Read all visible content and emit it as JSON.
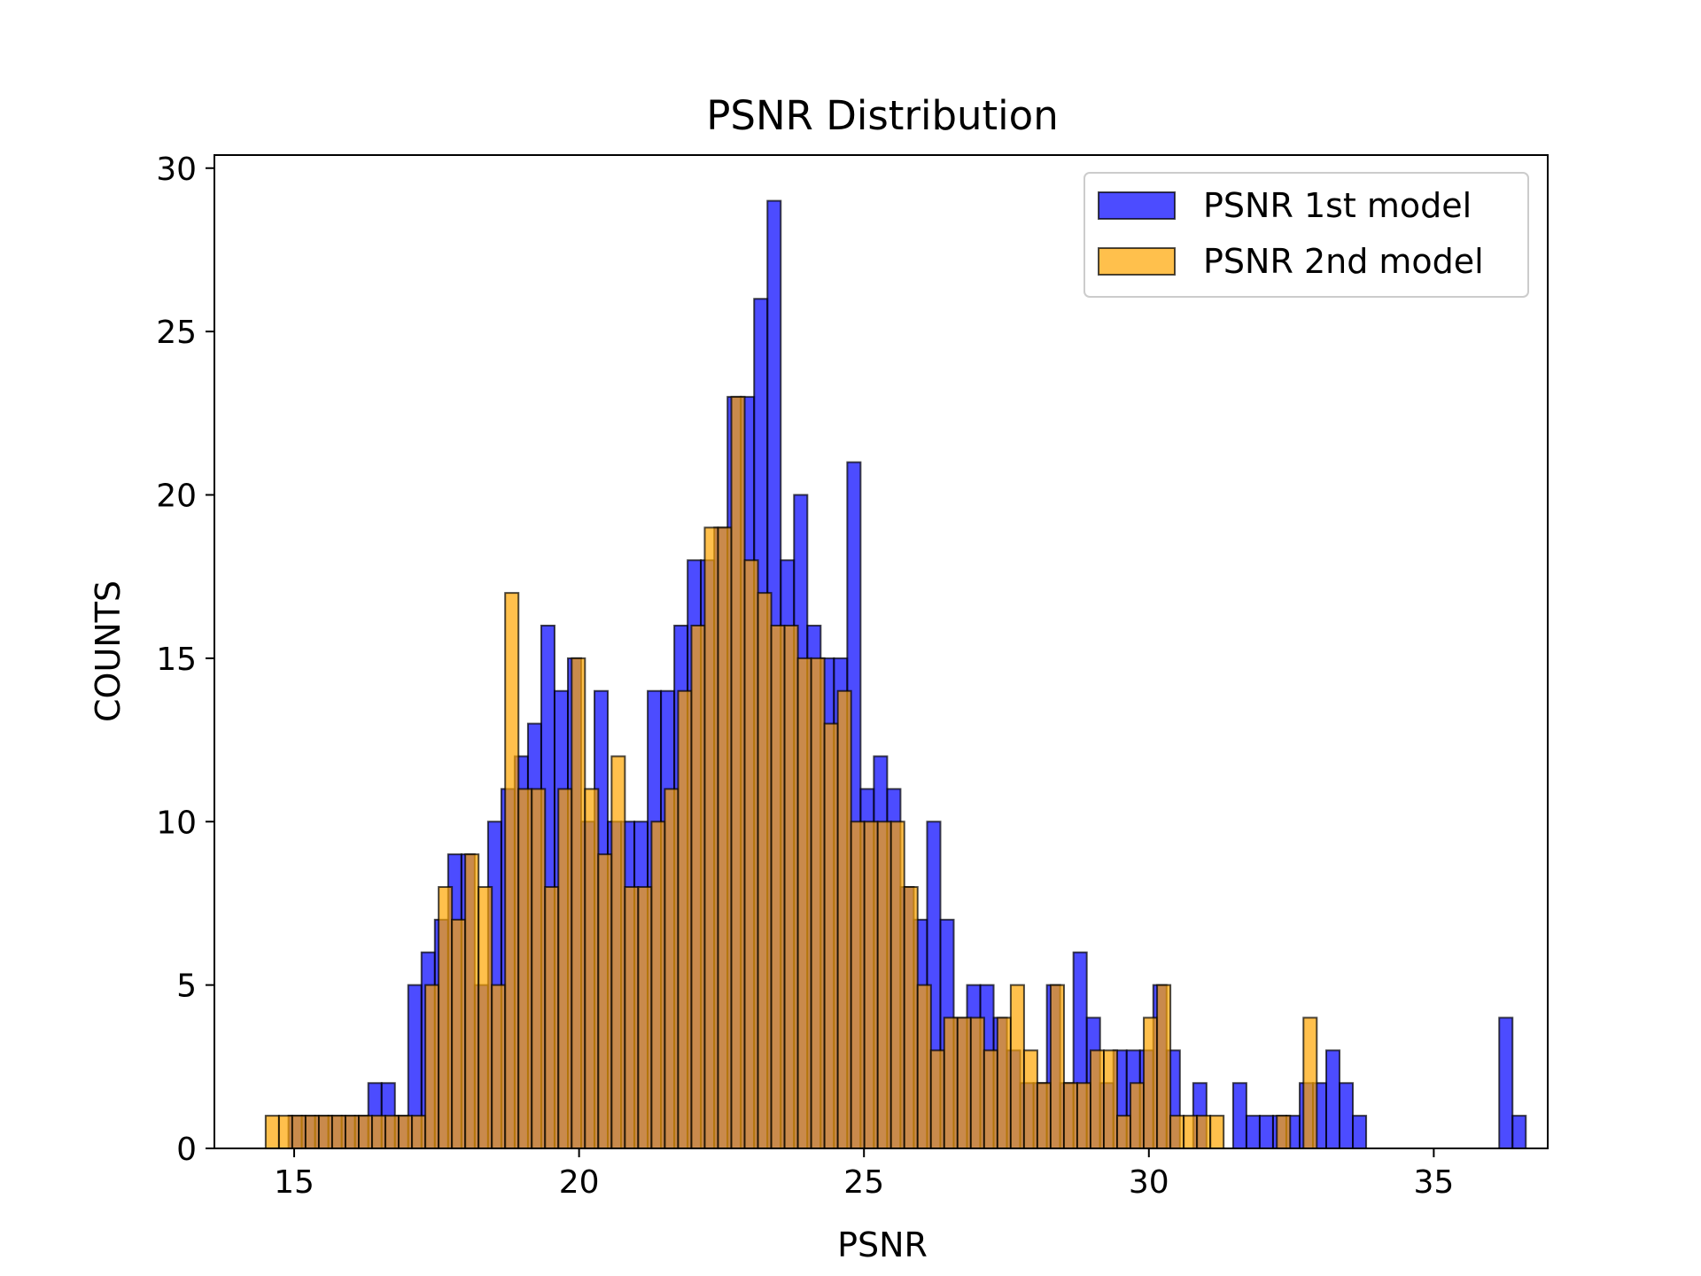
{
  "chart_data": {
    "type": "bar",
    "title": "PSNR Distribution",
    "xlabel": "PSNR",
    "ylabel": "COUNTS",
    "xlim": [
      13.6,
      37.0
    ],
    "ylim": [
      0,
      30.4
    ],
    "xticks": [
      15,
      20,
      25,
      30,
      35
    ],
    "yticks": [
      0,
      5,
      10,
      15,
      20,
      25,
      30
    ],
    "grid": false,
    "legend_position": "top-right",
    "series": [
      {
        "name": "PSNR 1st model",
        "color": "#0000ff",
        "bin_start": 14.9,
        "bin_width": 0.2335,
        "counts": [
          1,
          1,
          1,
          1,
          1,
          1,
          2,
          2,
          1,
          5,
          6,
          7,
          9,
          9,
          5,
          10,
          11,
          12,
          13,
          16,
          14,
          15,
          10,
          14,
          10,
          10,
          10,
          14,
          14,
          16,
          18,
          18,
          19,
          23,
          23,
          26,
          29,
          18,
          20,
          16,
          15,
          15,
          21,
          11,
          12,
          11,
          8,
          7,
          10,
          7,
          4,
          5,
          5,
          4,
          3,
          2,
          2,
          5,
          2,
          6,
          4,
          2,
          3,
          3,
          3,
          5,
          3,
          0,
          2,
          0,
          0,
          2,
          1,
          1,
          1,
          1,
          2,
          2,
          3,
          2,
          1,
          0,
          0,
          0,
          0,
          0,
          0,
          0,
          0,
          0,
          0,
          4,
          1
        ]
      },
      {
        "name": "PSNR 2nd model",
        "color": "#ffa500",
        "bin_start": 14.5,
        "bin_width": 0.2335,
        "counts": [
          1,
          1,
          1,
          1,
          1,
          1,
          1,
          1,
          1,
          1,
          1,
          1,
          5,
          8,
          7,
          9,
          8,
          5,
          17,
          11,
          11,
          8,
          11,
          15,
          11,
          9,
          12,
          8,
          8,
          10,
          11,
          14,
          16,
          19,
          19,
          23,
          18,
          17,
          16,
          16,
          15,
          15,
          13,
          14,
          10,
          10,
          10,
          10,
          8,
          5,
          3,
          4,
          4,
          4,
          3,
          4,
          5,
          3,
          2,
          5,
          2,
          2,
          3,
          3,
          1,
          2,
          4,
          5,
          1,
          1,
          1,
          1,
          0,
          0,
          0,
          0,
          1,
          0,
          4
        ]
      }
    ]
  }
}
